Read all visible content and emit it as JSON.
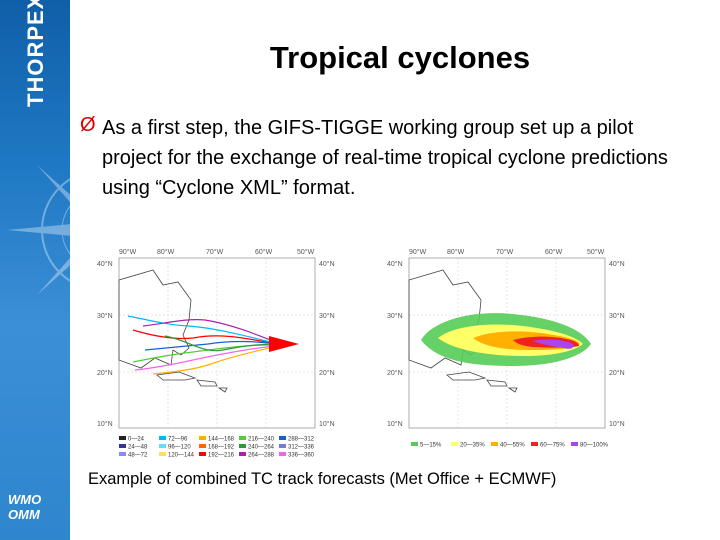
{
  "sidebar": {
    "brand": "THORPEX",
    "logo_line1": "WMO",
    "logo_line2": "OMM"
  },
  "slide": {
    "title": "Tropical cyclones",
    "bullet_marker": "Ø",
    "bullet_text": "As a first step, the GIFS-TIGGE working group set up a pilot project for the exchange of real-time tropical cyclone predictions using “Cyclone XML” format.",
    "caption": "Example of combined TC track forecasts (Met Office + ECMWF)"
  },
  "maps": {
    "lon_labels": [
      "90°W",
      "80°W",
      "70°W",
      "60°W",
      "50°W"
    ],
    "lat_labels": [
      "40°N",
      "30°N",
      "20°N",
      "10°N"
    ],
    "left_legend": [
      {
        "label": "0—24",
        "color": "#222222"
      },
      {
        "label": "72—96",
        "color": "#00b7ff"
      },
      {
        "label": "144—168",
        "color": "#ffb000"
      },
      {
        "label": "216—240",
        "color": "#55cc33"
      },
      {
        "label": "288—312",
        "color": "#1a5fd6"
      },
      {
        "label": "24—48",
        "color": "#333399"
      },
      {
        "label": "96—120",
        "color": "#66ddff"
      },
      {
        "label": "168—192",
        "color": "#ff6600"
      },
      {
        "label": "240—264",
        "color": "#2b9b3a"
      },
      {
        "label": "312—336",
        "color": "#7a7adb"
      },
      {
        "label": "48—72",
        "color": "#8888ff"
      },
      {
        "label": "120—144",
        "color": "#ffe14a"
      },
      {
        "label": "192—216",
        "color": "#ff0000"
      },
      {
        "label": "264—288",
        "color": "#aa22aa"
      },
      {
        "label": "336—360",
        "color": "#ee66ee"
      }
    ],
    "right_legend": [
      {
        "label": "5—15%",
        "color": "#55cc55"
      },
      {
        "label": "20—35%",
        "color": "#ffff66"
      },
      {
        "label": "40—55%",
        "color": "#ffb000"
      },
      {
        "label": "60—75%",
        "color": "#ee2222"
      },
      {
        "label": "80—100%",
        "color": "#aa44ee"
      }
    ]
  }
}
